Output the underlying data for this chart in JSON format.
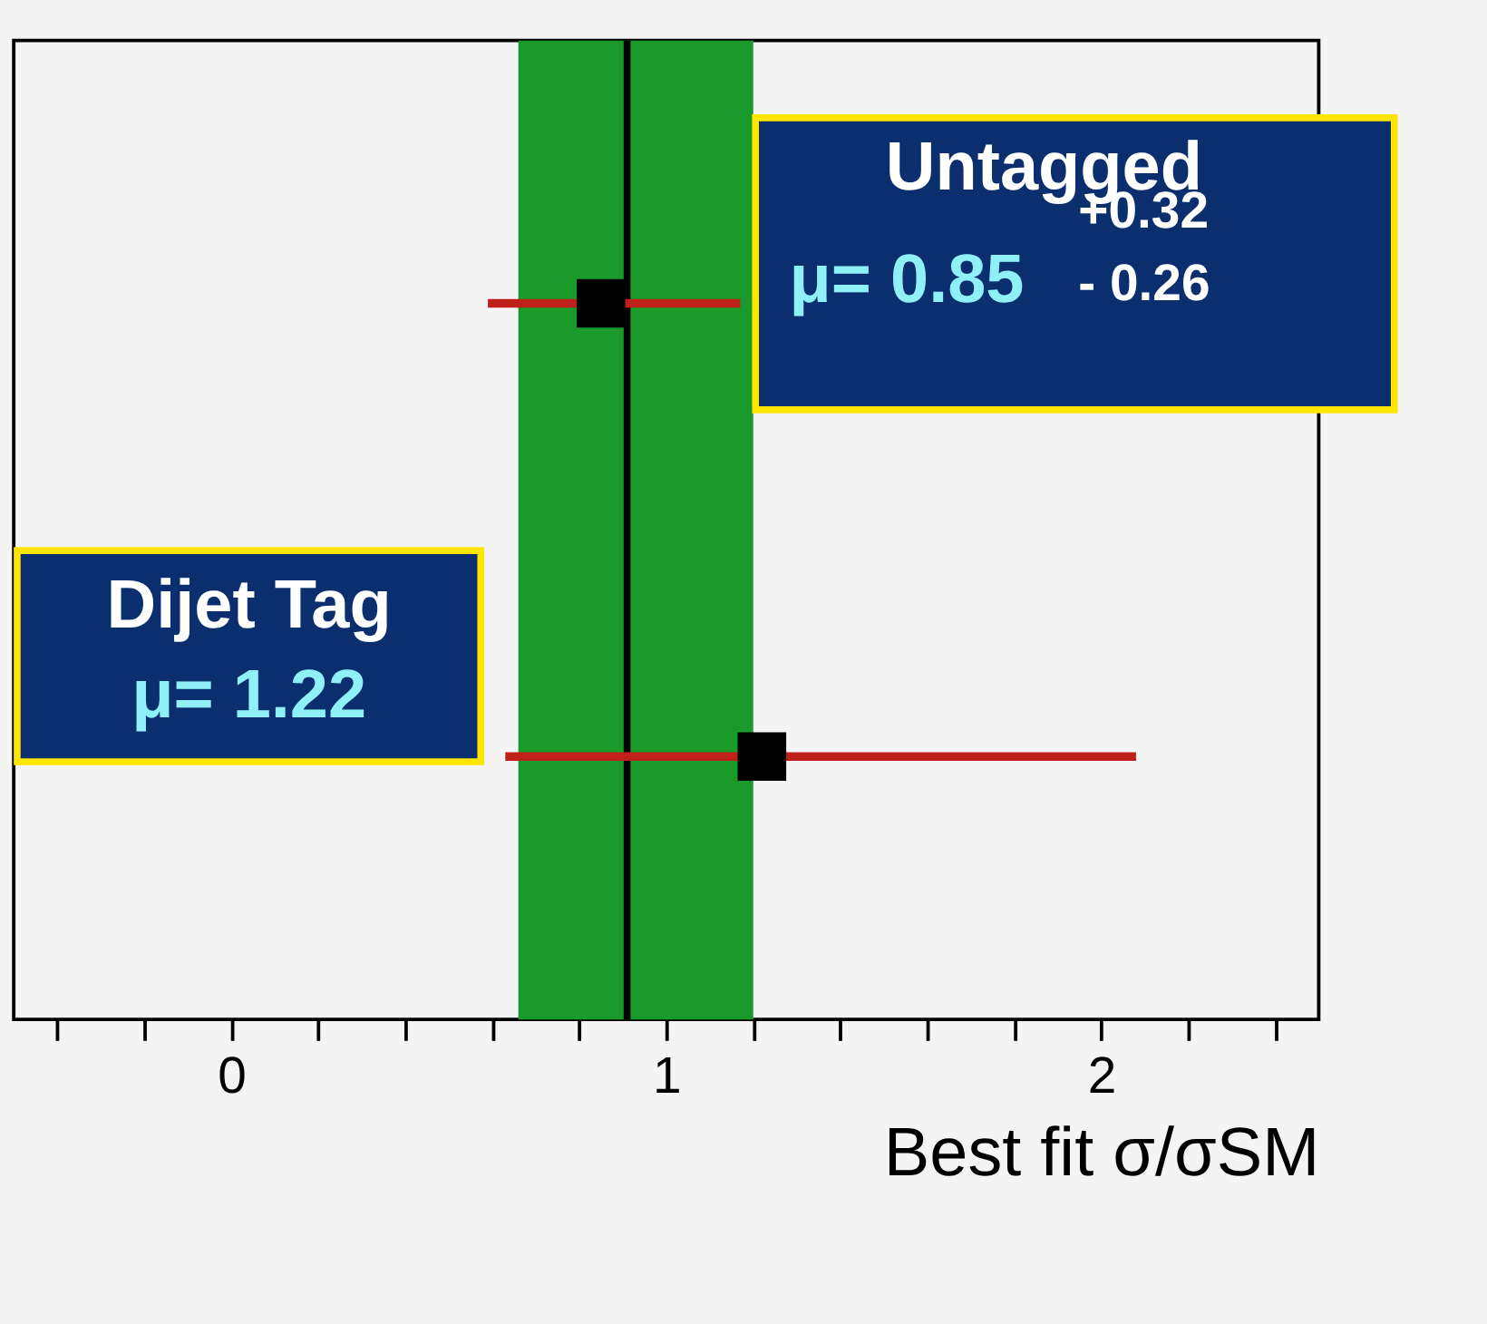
{
  "chart_data": {
    "type": "scatter",
    "orientation": "horizontal",
    "categories": [
      null,
      null
    ],
    "values": [
      0.85,
      1.22
    ],
    "errors": [
      [
        0.59,
        1.17
      ],
      [
        0.63,
        2.08
      ]
    ],
    "color": "#000000",
    "marker": "square",
    "xlabel": "Best fit σ/σSM",
    "xlim": [
      -0.5,
      2.5
    ],
    "xticks": [
      {
        "value": -0.4,
        "label": null
      },
      {
        "value": -0.2,
        "label": null
      },
      0,
      {
        "value": 0.2,
        "label": null
      },
      {
        "value": 0.4,
        "label": null
      },
      {
        "value": 0.6,
        "label": null
      },
      {
        "value": 0.8,
        "label": null
      },
      1,
      {
        "value": 1.2,
        "label": null
      },
      {
        "value": 1.4,
        "label": null
      },
      {
        "value": 1.6,
        "label": null
      },
      {
        "value": 1.8,
        "label": null
      },
      2,
      {
        "value": 2.2,
        "label": null
      },
      {
        "value": 2.4,
        "label": null
      }
    ],
    "ref_lines": [
      {
        "axis": "x",
        "value": 0.91,
        "label": null,
        "color": "#000000"
      }
    ],
    "bands": [
      {
        "axis": "x",
        "from": 0.66,
        "to": 1.2,
        "label": null,
        "color": "#1a9a2a"
      }
    ],
    "annotations": [
      "Untagged",
      "μ= 0.85",
      "+0.32",
      "- 0.26",
      "Dijet Tag",
      "μ= 1.22"
    ],
    "grid": false
  }
}
